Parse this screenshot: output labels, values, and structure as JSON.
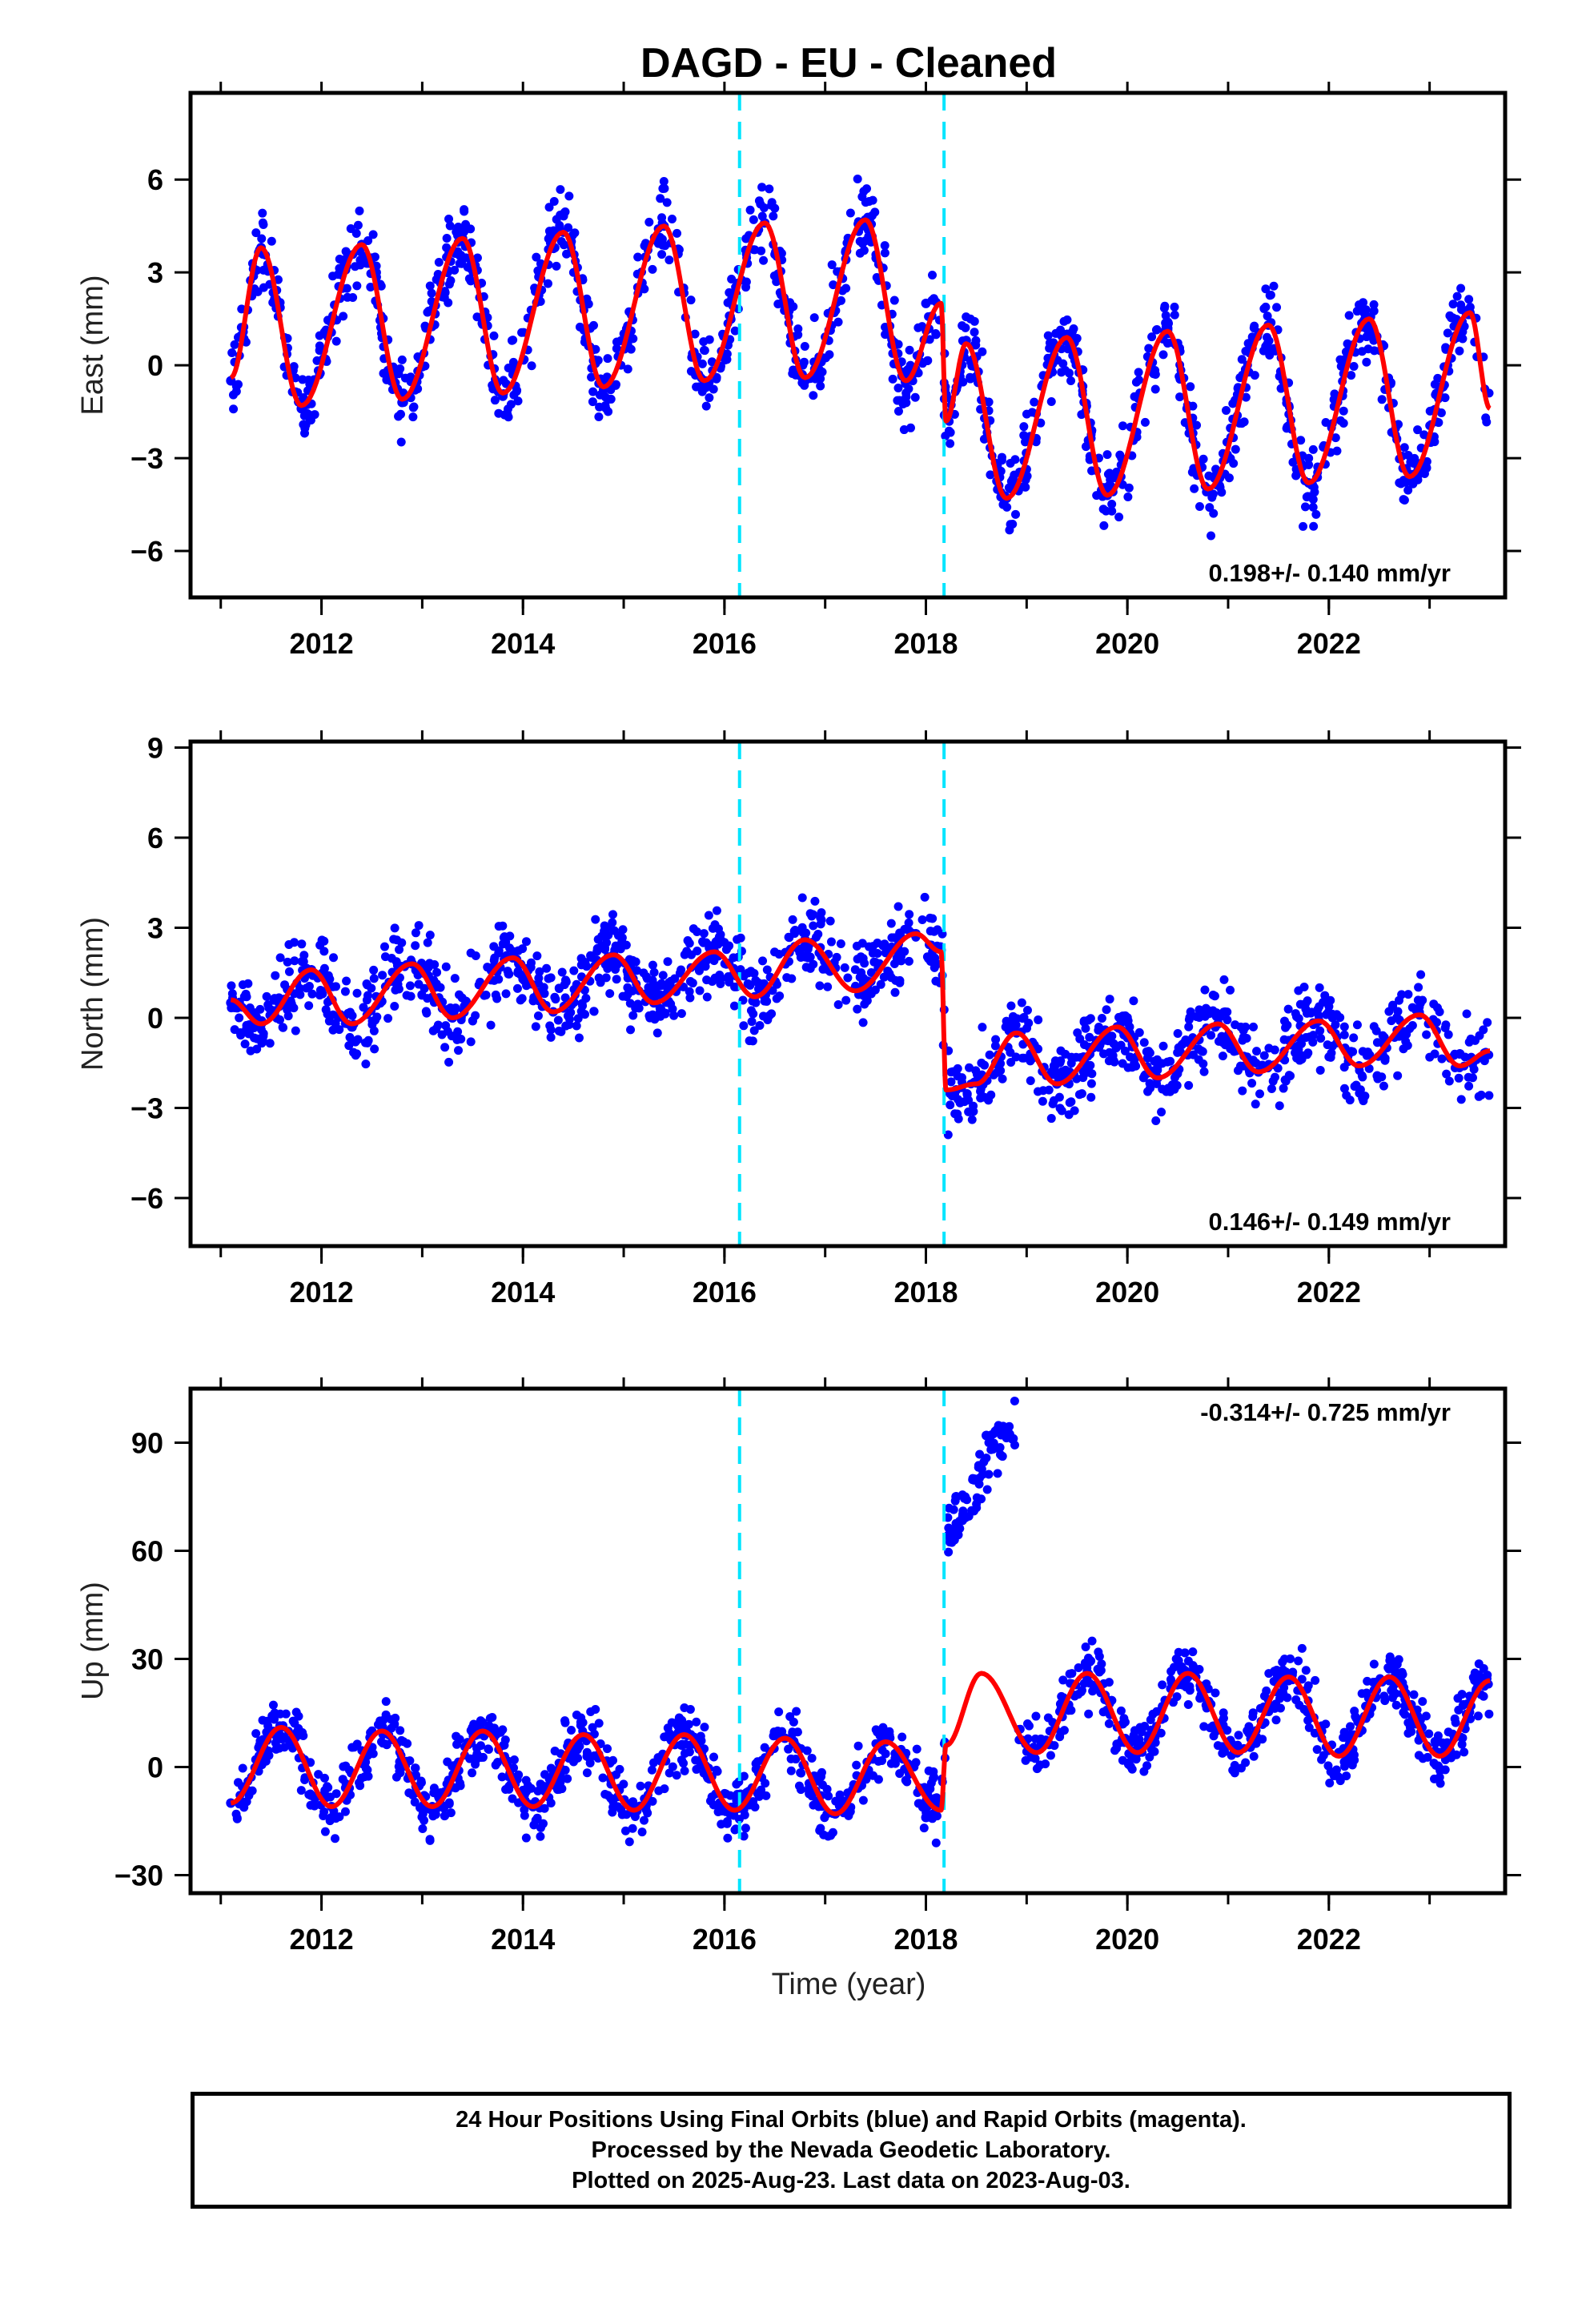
{
  "title": "DAGD  - EU - Cleaned",
  "colors": {
    "data": "#0000ff",
    "model": "#ff0000",
    "breaks": "#00e5ff",
    "frame": "#000000"
  },
  "xlabel": "Time (year)",
  "footer": {
    "line1": "24 Hour Positions Using Final Orbits (blue) and Rapid Orbits (magenta).",
    "line2": "Processed by the Nevada Geodetic Laboratory.",
    "line3": "Plotted on 2025-Aug-23. Last data on 2023-Aug-03."
  },
  "chart_data": [
    {
      "type": "scatter",
      "title": "DAGD  - EU - Cleaned",
      "ylabel": "East (mm)",
      "xlim": [
        2010.7,
        2023.75
      ],
      "ylim": [
        -7.5,
        8.8
      ],
      "xticks": [
        "2012",
        "2014",
        "2016",
        "2018",
        "2020",
        "2022"
      ],
      "yticks": [
        "-6",
        "-3",
        "0",
        "3",
        "6"
      ],
      "breaks": [
        2016.15,
        2018.18
      ],
      "rate": "0.198+/- 0.140 mm/yr",
      "series": [
        {
          "style": "points",
          "x": [
            2011.1,
            2011.4,
            2011.8,
            2012.4,
            2012.8,
            2013.4,
            2013.8,
            2014.4,
            2014.8,
            2015.4,
            2015.8,
            2016.4,
            2016.8,
            2017.4,
            2018.0,
            2018.4,
            2018.8,
            2019.4,
            2019.8,
            2020.4,
            2020.8,
            2021.4,
            2021.8,
            2022.4,
            2022.8,
            2023.4
          ],
          "y": [
            -0.5,
            3.8,
            -1.4,
            3.9,
            -1.2,
            4.1,
            -1.0,
            4.3,
            -0.8,
            4.5,
            -0.6,
            4.6,
            -0.5,
            4.7,
            2.0,
            0.8,
            -4.3,
            1.0,
            -4.2,
            1.2,
            -4.0,
            1.3,
            -3.8,
            1.5,
            -3.6,
            1.7
          ]
        },
        {
          "style": "line",
          "x": [
            2011.1,
            2011.4,
            2011.8,
            2012.4,
            2012.8,
            2013.4,
            2013.8,
            2014.4,
            2014.8,
            2015.4,
            2015.8,
            2016.4,
            2016.8,
            2017.4,
            2017.8,
            2018.15,
            2018.2,
            2018.4,
            2018.8,
            2019.4,
            2019.8,
            2020.4,
            2020.8,
            2021.4,
            2021.8,
            2022.4,
            2022.8,
            2023.4,
            2023.6
          ],
          "y": [
            -0.4,
            3.8,
            -1.3,
            3.9,
            -1.1,
            4.1,
            -0.9,
            4.3,
            -0.7,
            4.5,
            -0.5,
            4.6,
            -0.4,
            4.7,
            -0.5,
            2.0,
            -1.8,
            0.7,
            -4.3,
            0.9,
            -4.2,
            1.1,
            -4.0,
            1.3,
            -3.8,
            1.5,
            -3.6,
            1.7,
            -1.4
          ]
        }
      ]
    },
    {
      "type": "scatter",
      "ylabel": "North (mm)",
      "xlim": [
        2010.7,
        2023.75
      ],
      "ylim": [
        -7.6,
        9.2
      ],
      "xticks": [
        "2012",
        "2014",
        "2016",
        "2018",
        "2020",
        "2022"
      ],
      "yticks": [
        "-6",
        "-3",
        "0",
        "3",
        "6",
        "9"
      ],
      "breaks": [
        2016.15,
        2018.18
      ],
      "rate": "0.146+/- 0.149 mm/yr",
      "series": [
        {
          "style": "points",
          "x": [
            2011.1,
            2011.9,
            2012.3,
            2012.9,
            2013.3,
            2013.9,
            2014.3,
            2014.9,
            2015.3,
            2015.9,
            2016.3,
            2016.8,
            2017.3,
            2017.9,
            2018.3,
            2018.9,
            2019.3,
            2019.9,
            2020.3,
            2020.9,
            2021.3,
            2021.9,
            2022.3,
            2022.9,
            2023.3
          ],
          "y": [
            0.5,
            1.6,
            -0.3,
            1.8,
            0.0,
            2.0,
            0.2,
            2.1,
            0.5,
            2.2,
            0.7,
            2.6,
            1.0,
            2.8,
            -2.4,
            -0.5,
            -2.2,
            -0.3,
            -2.0,
            -0.2,
            -1.8,
            -0.1,
            -1.6,
            0.1,
            -1.2
          ]
        },
        {
          "style": "line",
          "x": [
            2011.1,
            2011.4,
            2011.9,
            2012.3,
            2012.9,
            2013.3,
            2013.9,
            2014.3,
            2014.9,
            2015.3,
            2015.9,
            2016.3,
            2016.8,
            2017.3,
            2017.9,
            2018.15,
            2018.2,
            2018.5,
            2018.9,
            2019.3,
            2019.9,
            2020.3,
            2020.9,
            2021.3,
            2021.9,
            2022.3,
            2022.9,
            2023.3,
            2023.6
          ],
          "y": [
            0.6,
            -0.2,
            1.6,
            -0.2,
            1.8,
            0.0,
            2.0,
            0.2,
            2.1,
            0.5,
            2.2,
            0.7,
            2.6,
            0.9,
            2.8,
            2.2,
            -2.4,
            -2.2,
            -0.5,
            -2.2,
            -0.3,
            -2.0,
            -0.2,
            -1.8,
            -0.1,
            -1.6,
            0.1,
            -1.6,
            -1.1
          ]
        }
      ]
    },
    {
      "type": "scatter",
      "ylabel": "Up (mm)",
      "xlim": [
        2010.7,
        2023.75
      ],
      "ylim": [
        -35,
        105
      ],
      "xticks": [
        "2012",
        "2014",
        "2016",
        "2018",
        "2020",
        "2022"
      ],
      "yticks": [
        "-30",
        "0",
        "30",
        "60",
        "90"
      ],
      "breaks": [
        2016.15,
        2018.18
      ],
      "rate": "-0.314+/- 0.725 mm/yr",
      "series": [
        {
          "style": "points",
          "x": [
            2011.1,
            2011.6,
            2012.1,
            2012.6,
            2013.1,
            2013.6,
            2014.1,
            2014.6,
            2015.1,
            2015.6,
            2016.1,
            2016.6,
            2017.1,
            2017.6,
            2018.0,
            2018.3,
            2018.6,
            2019.1,
            2019.6,
            2020.1,
            2020.6,
            2021.1,
            2021.6,
            2022.1,
            2022.6,
            2023.1,
            2023.5
          ],
          "y": [
            -10,
            11,
            -11,
            10,
            -11,
            10,
            -11,
            9,
            -12,
            9,
            -12,
            8,
            -13,
            7,
            -14,
            75,
            92,
            5,
            25,
            5,
            25,
            5,
            24,
            4,
            24,
            4,
            24
          ]
        },
        {
          "style": "line",
          "x": [
            2011.1,
            2011.6,
            2012.1,
            2012.6,
            2013.1,
            2013.6,
            2014.1,
            2014.6,
            2015.1,
            2015.6,
            2016.1,
            2016.6,
            2017.1,
            2017.6,
            2018.15,
            2018.2,
            2018.55,
            2019.1,
            2019.6,
            2020.1,
            2020.6,
            2021.1,
            2021.6,
            2022.1,
            2022.6,
            2023.1,
            2023.6
          ],
          "y": [
            -10,
            11,
            -11,
            10,
            -11,
            10,
            -11,
            9,
            -12,
            9,
            -12,
            8,
            -13,
            7,
            -12,
            6,
            26,
            4,
            26,
            4,
            26,
            4,
            25,
            3,
            25,
            3,
            24
          ]
        }
      ]
    }
  ]
}
